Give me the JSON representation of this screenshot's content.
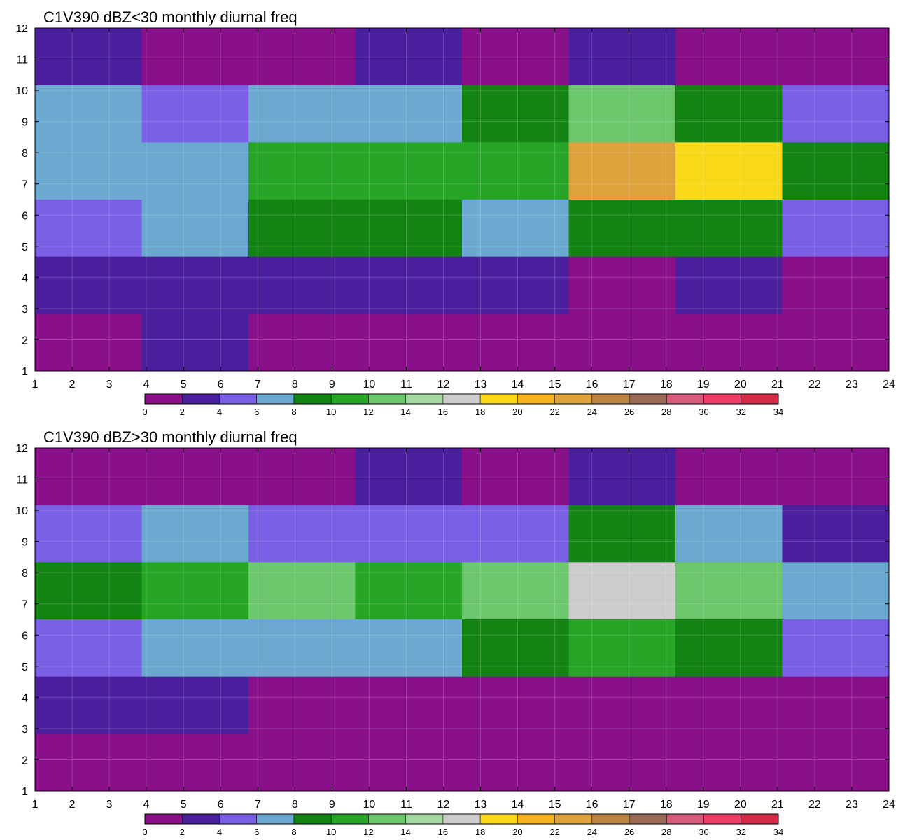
{
  "colorbar": {
    "levels": [
      0,
      2,
      4,
      6,
      8,
      10,
      12,
      14,
      16,
      18,
      20,
      22,
      24,
      26,
      28,
      30,
      32,
      34
    ],
    "colors": [
      "#8a1089",
      "#4a1f9e",
      "#7a5ee4",
      "#6aa8d0",
      "#138413",
      "#27a527",
      "#6cc66c",
      "#a4d9a1",
      "#cccccc",
      "#f9d81a",
      "#f6b51e",
      "#dea33d",
      "#bb8544",
      "#9a6b56",
      "#d85d7c",
      "#ee3c66",
      "#d42a45"
    ]
  },
  "chart_data": [
    {
      "type": "heatmap",
      "title": "C1V390 dBZ<30 monthly diurnal freq",
      "x": [
        1,
        2,
        3,
        4,
        5,
        6,
        7,
        8,
        9,
        10,
        11,
        12,
        13,
        14,
        15,
        16,
        17,
        18,
        19,
        20,
        21,
        22,
        23,
        24
      ],
      "y": [
        1,
        2,
        3,
        4,
        5,
        6,
        7,
        8,
        9,
        10,
        11,
        12
      ],
      "xlim": [
        1,
        24
      ],
      "ylim": [
        1,
        12
      ],
      "grid": true,
      "legend": "colorbar-bottom",
      "z": [
        [
          1,
          1,
          1,
          1,
          2,
          1,
          1,
          1,
          1,
          1,
          1,
          1,
          1,
          1,
          1,
          1,
          1,
          1,
          1,
          1,
          1,
          1,
          1,
          1
        ],
        [
          1,
          1,
          1,
          1,
          3,
          2,
          2,
          1,
          1,
          1,
          1,
          1,
          1,
          1,
          1,
          1,
          1,
          2,
          2,
          2,
          1,
          1,
          1,
          1
        ],
        [
          3,
          1,
          1,
          1,
          1,
          1,
          1,
          1,
          2,
          2,
          2,
          2,
          2,
          3,
          2,
          2,
          1,
          1,
          2,
          2,
          1,
          1,
          1,
          1
        ],
        [
          4,
          4,
          4,
          4,
          4,
          4,
          3,
          3,
          3,
          3,
          3,
          3,
          3,
          4,
          3,
          3,
          2,
          2,
          3,
          3,
          3,
          2,
          2,
          2
        ],
        [
          5,
          5,
          6,
          5,
          5,
          5,
          6,
          6,
          6,
          6,
          6,
          6,
          6,
          6,
          5,
          5,
          5,
          5,
          5,
          5,
          4,
          4,
          4,
          3
        ],
        [
          4,
          5,
          5,
          5,
          9,
          5,
          6,
          10,
          10,
          10,
          11,
          11,
          9,
          7,
          8,
          10,
          12,
          14,
          12,
          10,
          8,
          7,
          6,
          5
        ],
        [
          5,
          5,
          5,
          5,
          6,
          5,
          7,
          11,
          7,
          11,
          9,
          11,
          11,
          13,
          15,
          17,
          26,
          27,
          22,
          16,
          11,
          9,
          8,
          7
        ],
        [
          7,
          10,
          9,
          11,
          10,
          9,
          16,
          15,
          10,
          10,
          14,
          13,
          12,
          9,
          16,
          20,
          23,
          25,
          22,
          19,
          13,
          11,
          9,
          8
        ],
        [
          5,
          7,
          7,
          6,
          6,
          6,
          9,
          9,
          8,
          7,
          8,
          8,
          9,
          9,
          11,
          12,
          15,
          14,
          12,
          10,
          9,
          7,
          6,
          5
        ],
        [
          3,
          3,
          3,
          3,
          3,
          3,
          3,
          3,
          3,
          3,
          3,
          4,
          5,
          6,
          4,
          6,
          6,
          6,
          5,
          5,
          5,
          4,
          4,
          4
        ],
        [
          3,
          5,
          3,
          3,
          2,
          1,
          1,
          2,
          2,
          2,
          3,
          2,
          1,
          2,
          3,
          3,
          3,
          3,
          2,
          2,
          3,
          1,
          1,
          1
        ],
        [
          1,
          1,
          1,
          1,
          1,
          1,
          1,
          1,
          1,
          1,
          1,
          1,
          1,
          1,
          1,
          1,
          1,
          1,
          1,
          1,
          1,
          1,
          1,
          1
        ]
      ]
    },
    {
      "type": "heatmap",
      "title": "C1V390 dBZ>30 monthly diurnal freq",
      "x": [
        1,
        2,
        3,
        4,
        5,
        6,
        7,
        8,
        9,
        10,
        11,
        12,
        13,
        14,
        15,
        16,
        17,
        18,
        19,
        20,
        21,
        22,
        23,
        24
      ],
      "y": [
        1,
        2,
        3,
        4,
        5,
        6,
        7,
        8,
        9,
        10,
        11,
        12
      ],
      "xlim": [
        1,
        24
      ],
      "ylim": [
        1,
        12
      ],
      "grid": true,
      "legend": "colorbar-bottom",
      "z": [
        [
          1,
          1,
          1,
          1,
          1,
          1,
          1,
          1,
          1,
          1,
          1,
          1,
          1,
          1,
          1,
          1,
          1,
          1,
          1,
          1,
          1,
          1,
          1,
          1
        ],
        [
          1,
          1,
          1,
          1,
          1,
          1,
          1,
          1,
          1,
          1,
          1,
          1,
          1,
          1,
          1,
          1,
          1,
          1,
          1,
          1,
          1,
          1,
          1,
          1
        ],
        [
          1,
          1,
          1,
          1,
          1,
          1,
          1,
          1,
          1,
          1,
          1,
          1,
          1,
          1,
          1,
          1,
          1,
          1,
          1,
          1,
          1,
          1,
          1,
          1
        ],
        [
          2,
          3,
          3,
          3,
          3,
          3,
          3,
          1,
          1,
          1,
          1,
          1,
          1,
          1,
          1,
          1,
          1,
          1,
          1,
          1,
          1,
          1,
          1,
          2
        ],
        [
          3,
          3,
          3,
          4,
          4,
          5,
          3,
          3,
          3,
          3,
          3,
          3,
          3,
          3,
          3,
          3,
          3,
          3,
          3,
          3,
          2,
          2,
          3,
          3
        ],
        [
          6,
          6,
          10,
          10,
          9,
          11,
          11,
          10,
          11,
          11,
          11,
          11,
          12,
          13,
          13,
          13,
          16,
          16,
          15,
          13,
          11,
          6,
          5,
          5
        ],
        [
          6,
          6,
          7,
          9,
          7,
          11,
          11,
          11,
          11,
          11,
          7,
          11,
          9,
          13,
          14,
          15,
          17,
          19,
          17,
          15,
          10,
          7,
          5,
          5
        ],
        [
          10,
          10,
          11,
          12,
          13,
          15,
          17,
          15,
          14,
          14,
          15,
          14,
          14,
          12,
          11,
          14,
          20,
          17,
          13,
          11,
          9,
          7,
          6,
          9
        ],
        [
          5,
          5,
          7,
          7,
          8,
          7,
          5,
          5,
          5,
          5,
          5,
          5,
          5,
          5,
          6,
          6,
          10,
          10,
          9,
          8,
          6,
          5,
          4,
          4
        ],
        [
          2,
          3,
          3,
          3,
          3,
          3,
          3,
          2,
          2,
          3,
          3,
          3,
          3,
          3,
          4,
          4,
          5,
          4,
          3,
          3,
          2,
          1,
          1,
          1
        ],
        [
          1,
          1,
          1,
          1,
          1,
          1,
          1,
          1,
          1,
          2,
          3,
          2,
          2,
          2,
          2,
          3,
          2,
          2,
          2,
          1,
          1,
          1,
          1,
          1
        ],
        [
          1,
          1,
          1,
          1,
          1,
          1,
          1,
          1,
          1,
          1,
          1,
          1,
          1,
          1,
          1,
          1,
          1,
          1,
          1,
          1,
          1,
          1,
          1,
          1
        ]
      ]
    }
  ]
}
